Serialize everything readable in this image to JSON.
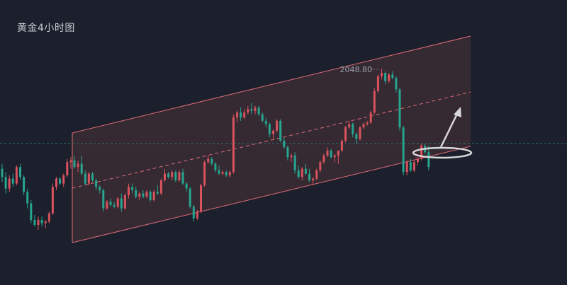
{
  "chart_data": {
    "type": "candlestick",
    "title": "黄金4小时图",
    "series_name": "",
    "annotations": {
      "peak_label": "2048.80"
    },
    "colors": {
      "background": "#1b202c",
      "up": "#d9535d",
      "down": "#26a58f",
      "channel": "#e06d76",
      "channel_fill": "#3a2c34",
      "dashed_level": "#2e6f7a",
      "arrow": "#d8d8d8"
    },
    "grid": false,
    "candles": [
      [
        2018.5,
        2020.0,
        2014.5,
        2016.0
      ],
      [
        2016.0,
        2017.5,
        2011.0,
        2012.5
      ],
      [
        2012.5,
        2016.5,
        2011.5,
        2015.5
      ],
      [
        2015.5,
        2017.0,
        2013.0,
        2014.0
      ],
      [
        2014.0,
        2019.5,
        2013.5,
        2019.0
      ],
      [
        2019.0,
        2020.0,
        2015.0,
        2016.0
      ],
      [
        2016.0,
        2016.5,
        2010.5,
        2011.5
      ],
      [
        2011.5,
        2012.5,
        2006.5,
        2008.0
      ],
      [
        2008.0,
        2009.0,
        2002.0,
        2003.0
      ],
      [
        2003.0,
        2004.5,
        2001.0,
        2001.5
      ],
      [
        2001.5,
        2004.0,
        2000.0,
        2003.0
      ],
      [
        2003.0,
        2004.0,
        2001.0,
        2002.0
      ],
      [
        2002.0,
        2003.0,
        2000.5,
        2002.5
      ],
      [
        2002.5,
        2005.5,
        2002.0,
        2005.0
      ],
      [
        2005.0,
        2014.0,
        2004.5,
        2013.0
      ],
      [
        2013.0,
        2016.0,
        2012.0,
        2015.5
      ],
      [
        2015.5,
        2016.0,
        2013.5,
        2014.0
      ],
      [
        2014.0,
        2017.0,
        2013.0,
        2016.5
      ],
      [
        2016.5,
        2021.5,
        2016.0,
        2020.5
      ],
      [
        2020.5,
        2022.0,
        2018.5,
        2021.0
      ],
      [
        2021.0,
        2022.5,
        2018.5,
        2019.0
      ],
      [
        2019.0,
        2021.0,
        2017.5,
        2020.0
      ],
      [
        2020.0,
        2022.5,
        2016.5,
        2017.0
      ],
      [
        2017.0,
        2018.0,
        2013.5,
        2014.0
      ],
      [
        2014.0,
        2017.5,
        2013.5,
        2017.0
      ],
      [
        2017.0,
        2017.5,
        2014.5,
        2015.0
      ],
      [
        2015.0,
        2015.5,
        2012.0,
        2013.0
      ],
      [
        2013.0,
        2013.5,
        2011.0,
        2012.0
      ],
      [
        2012.0,
        2012.5,
        2005.5,
        2006.5
      ],
      [
        2006.5,
        2009.0,
        2006.0,
        2008.5
      ],
      [
        2008.5,
        2009.5,
        2007.0,
        2007.5
      ],
      [
        2007.5,
        2008.5,
        2006.5,
        2007.0
      ],
      [
        2007.0,
        2010.0,
        2006.5,
        2009.5
      ],
      [
        2009.5,
        2011.0,
        2005.5,
        2006.5
      ],
      [
        2006.5,
        2011.0,
        2006.0,
        2010.5
      ],
      [
        2010.5,
        2014.0,
        2009.5,
        2013.0
      ],
      [
        2013.0,
        2014.0,
        2011.0,
        2012.0
      ],
      [
        2012.0,
        2013.0,
        2009.5,
        2010.0
      ],
      [
        2010.0,
        2011.5,
        2009.0,
        2011.0
      ],
      [
        2011.0,
        2012.0,
        2009.5,
        2010.0
      ],
      [
        2010.0,
        2012.0,
        2009.5,
        2011.5
      ],
      [
        2011.5,
        2012.0,
        2008.5,
        2009.0
      ],
      [
        2009.0,
        2012.0,
        2008.5,
        2011.5
      ],
      [
        2011.5,
        2013.5,
        2010.5,
        2011.0
      ],
      [
        2011.0,
        2015.5,
        2010.5,
        2015.0
      ],
      [
        2015.0,
        2018.5,
        2014.5,
        2017.0
      ],
      [
        2017.0,
        2017.5,
        2015.5,
        2016.0
      ],
      [
        2016.0,
        2018.0,
        2015.0,
        2017.5
      ],
      [
        2017.5,
        2018.0,
        2014.5,
        2015.0
      ],
      [
        2015.0,
        2018.0,
        2014.5,
        2017.5
      ],
      [
        2017.5,
        2018.5,
        2013.5,
        2014.0
      ],
      [
        2014.0,
        2014.5,
        2011.5,
        2012.5
      ],
      [
        2012.5,
        2013.0,
        2006.5,
        2007.0
      ],
      [
        2007.0,
        2007.5,
        2002.5,
        2003.5
      ],
      [
        2003.5,
        2006.0,
        2003.0,
        2005.5
      ],
      [
        2005.5,
        2014.0,
        2005.0,
        2013.5
      ],
      [
        2013.5,
        2021.0,
        2013.0,
        2020.5
      ],
      [
        2020.5,
        2022.5,
        2020.0,
        2021.5
      ],
      [
        2021.5,
        2022.0,
        2019.5,
        2020.0
      ],
      [
        2020.0,
        2020.5,
        2017.5,
        2018.0
      ],
      [
        2018.0,
        2019.5,
        2016.5,
        2017.0
      ],
      [
        2017.0,
        2018.0,
        2016.5,
        2017.5
      ],
      [
        2017.5,
        2018.0,
        2016.0,
        2016.5
      ],
      [
        2016.5,
        2018.0,
        2016.0,
        2017.5
      ],
      [
        2017.5,
        2035.0,
        2017.0,
        2034.0
      ],
      [
        2034.0,
        2036.0,
        2032.5,
        2035.5
      ],
      [
        2035.5,
        2037.0,
        2033.0,
        2034.0
      ],
      [
        2034.0,
        2036.5,
        2033.5,
        2035.5
      ],
      [
        2035.5,
        2037.5,
        2035.0,
        2036.5
      ],
      [
        2036.5,
        2038.5,
        2035.0,
        2036.0
      ],
      [
        2036.0,
        2037.5,
        2035.0,
        2037.0
      ],
      [
        2037.0,
        2037.5,
        2034.5,
        2035.0
      ],
      [
        2035.0,
        2035.5,
        2032.5,
        2033.0
      ],
      [
        2033.0,
        2034.0,
        2031.0,
        2032.0
      ],
      [
        2032.0,
        2032.5,
        2028.0,
        2029.0
      ],
      [
        2029.0,
        2030.5,
        2027.5,
        2030.0
      ],
      [
        2030.0,
        2033.5,
        2029.5,
        2033.0
      ],
      [
        2033.0,
        2033.5,
        2026.5,
        2027.0
      ],
      [
        2027.0,
        2028.0,
        2024.5,
        2025.0
      ],
      [
        2025.0,
        2025.5,
        2021.0,
        2022.0
      ],
      [
        2022.0,
        2023.0,
        2020.5,
        2022.5
      ],
      [
        2022.5,
        2023.5,
        2017.0,
        2018.0
      ],
      [
        2018.0,
        2019.5,
        2015.5,
        2016.0
      ],
      [
        2016.0,
        2019.0,
        2015.0,
        2018.5
      ],
      [
        2018.5,
        2020.0,
        2016.5,
        2017.0
      ],
      [
        2017.0,
        2018.5,
        2014.5,
        2015.0
      ],
      [
        2015.0,
        2016.0,
        2013.5,
        2015.5
      ],
      [
        2015.5,
        2018.5,
        2015.0,
        2018.0
      ],
      [
        2018.0,
        2021.0,
        2017.5,
        2020.5
      ],
      [
        2020.5,
        2023.0,
        2020.0,
        2022.5
      ],
      [
        2022.5,
        2025.0,
        2022.0,
        2024.0
      ],
      [
        2024.0,
        2024.5,
        2021.5,
        2022.0
      ],
      [
        2022.0,
        2023.0,
        2020.5,
        2022.5
      ],
      [
        2022.5,
        2024.0,
        2020.0,
        2024.0
      ],
      [
        2024.0,
        2027.5,
        2023.5,
        2027.0
      ],
      [
        2027.0,
        2031.5,
        2026.5,
        2031.0
      ],
      [
        2031.0,
        2033.0,
        2030.5,
        2032.0
      ],
      [
        2032.0,
        2032.5,
        2028.0,
        2029.0
      ],
      [
        2029.0,
        2029.5,
        2026.0,
        2027.5
      ],
      [
        2027.5,
        2031.5,
        2027.0,
        2031.0
      ],
      [
        2031.0,
        2032.5,
        2030.5,
        2032.0
      ],
      [
        2032.0,
        2033.0,
        2031.5,
        2032.5
      ],
      [
        2032.5,
        2036.0,
        2032.0,
        2035.5
      ],
      [
        2035.5,
        2043.0,
        2035.0,
        2042.0
      ],
      [
        2042.0,
        2047.0,
        2041.5,
        2046.5
      ],
      [
        2046.5,
        2048.8,
        2045.5,
        2047.5
      ],
      [
        2047.5,
        2048.0,
        2044.0,
        2045.0
      ],
      [
        2045.0,
        2047.5,
        2044.5,
        2047.0
      ],
      [
        2047.0,
        2048.0,
        2045.5,
        2046.0
      ],
      [
        2046.0,
        2046.5,
        2041.5,
        2042.5
      ],
      [
        2042.5,
        2043.0,
        2030.0,
        2031.0
      ],
      [
        2031.0,
        2031.5,
        2016.5,
        2017.5
      ],
      [
        2017.5,
        2021.0,
        2016.5,
        2020.5
      ],
      [
        2020.5,
        2021.5,
        2017.5,
        2018.0
      ],
      [
        2018.0,
        2021.0,
        2017.5,
        2020.5
      ],
      [
        2020.5,
        2022.0,
        2019.5,
        2021.5
      ],
      [
        2021.5,
        2026.0,
        2021.0,
        2025.5
      ],
      [
        2025.5,
        2026.0,
        2023.0,
        2023.5
      ],
      [
        2023.5,
        2025.5,
        2018.0,
        2019.0
      ]
    ]
  }
}
